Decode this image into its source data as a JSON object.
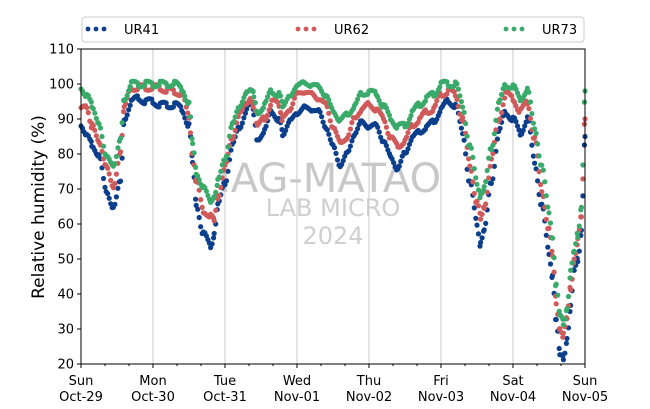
{
  "watermark": {
    "line1": "IAG-MATAO",
    "line2": "LAB MICRO",
    "line3": "2024"
  },
  "colors": {
    "UR41": "#0b3f8c",
    "UR62": "#d05a5a",
    "UR73": "#3aaa6a",
    "grid": "#c8c8c8"
  },
  "chart_data": {
    "type": "scatter",
    "ylabel": "Relative humidity (%)",
    "ylim": [
      20,
      110
    ],
    "yticks": [
      20,
      30,
      40,
      50,
      60,
      70,
      80,
      90,
      100,
      110
    ],
    "xlim": [
      0,
      7
    ],
    "xticks": [
      {
        "x": 0,
        "day": "Sun",
        "date": "Oct-29"
      },
      {
        "x": 1,
        "day": "Mon",
        "date": "Oct-30"
      },
      {
        "x": 2,
        "day": "Tue",
        "date": "Oct-31"
      },
      {
        "x": 3,
        "day": "Wed",
        "date": "Nov-01"
      },
      {
        "x": 4,
        "day": "Thu",
        "date": "Nov-02"
      },
      {
        "x": 5,
        "day": "Fri",
        "date": "Nov-03"
      },
      {
        "x": 6,
        "day": "Sat",
        "date": "Nov-04"
      },
      {
        "x": 7,
        "day": "Sun",
        "date": "Nov-05"
      }
    ],
    "grid": "vertical",
    "legend_placement": "top",
    "series": [
      {
        "name": "UR41",
        "color": "#0b3f8c",
        "points": [
          [
            0,
            88
          ],
          [
            0.08,
            86
          ],
          [
            0.15,
            83
          ],
          [
            0.25,
            79
          ],
          [
            0.35,
            70
          ],
          [
            0.45,
            64
          ],
          [
            0.55,
            73
          ],
          [
            0.6,
            90
          ],
          [
            0.7,
            95
          ],
          [
            0.8,
            96
          ],
          [
            0.9,
            95
          ],
          [
            1.0,
            95
          ],
          [
            1.1,
            94
          ],
          [
            1.2,
            94
          ],
          [
            1.3,
            94
          ],
          [
            1.4,
            93
          ],
          [
            1.5,
            88
          ],
          [
            1.55,
            78
          ],
          [
            1.6,
            66
          ],
          [
            1.7,
            57
          ],
          [
            1.8,
            54
          ],
          [
            1.85,
            57
          ],
          [
            1.9,
            65
          ],
          [
            2.0,
            72
          ],
          [
            2.1,
            82
          ],
          [
            2.2,
            88
          ],
          [
            2.3,
            92
          ],
          [
            2.35,
            95
          ],
          [
            2.4,
            92
          ],
          [
            2.45,
            84
          ],
          [
            2.55,
            87
          ],
          [
            2.65,
            92
          ],
          [
            2.75,
            90
          ],
          [
            2.8,
            86
          ],
          [
            2.9,
            89
          ],
          [
            3.0,
            92
          ],
          [
            3.1,
            93
          ],
          [
            3.2,
            93
          ],
          [
            3.3,
            92
          ],
          [
            3.4,
            88
          ],
          [
            3.5,
            82
          ],
          [
            3.6,
            77
          ],
          [
            3.7,
            80
          ],
          [
            3.8,
            86
          ],
          [
            3.9,
            89
          ],
          [
            4.0,
            88
          ],
          [
            4.1,
            88
          ],
          [
            4.2,
            84
          ],
          [
            4.3,
            79
          ],
          [
            4.4,
            76
          ],
          [
            4.5,
            80
          ],
          [
            4.6,
            85
          ],
          [
            4.7,
            86
          ],
          [
            4.8,
            88
          ],
          [
            4.9,
            89
          ],
          [
            5.0,
            93
          ],
          [
            5.1,
            95
          ],
          [
            5.2,
            94
          ],
          [
            5.3,
            86
          ],
          [
            5.4,
            72
          ],
          [
            5.5,
            60
          ],
          [
            5.55,
            54
          ],
          [
            5.6,
            58
          ],
          [
            5.7,
            72
          ],
          [
            5.8,
            86
          ],
          [
            5.9,
            92
          ],
          [
            6.0,
            90
          ],
          [
            6.1,
            86
          ],
          [
            6.2,
            90
          ],
          [
            6.3,
            78
          ],
          [
            6.4,
            65
          ],
          [
            6.5,
            52
          ],
          [
            6.55,
            45
          ],
          [
            6.6,
            32
          ],
          [
            6.65,
            23
          ],
          [
            6.7,
            22
          ],
          [
            6.75,
            27
          ],
          [
            6.8,
            36
          ],
          [
            6.85,
            47
          ],
          [
            6.9,
            50
          ],
          [
            6.95,
            58
          ],
          [
            7.0,
            85
          ]
        ]
      },
      {
        "name": "UR62",
        "color": "#d05a5a",
        "points": [
          [
            0,
            93
          ],
          [
            0.08,
            93
          ],
          [
            0.15,
            88
          ],
          [
            0.25,
            84
          ],
          [
            0.35,
            76
          ],
          [
            0.45,
            71
          ],
          [
            0.55,
            80
          ],
          [
            0.6,
            93
          ],
          [
            0.7,
            99
          ],
          [
            0.8,
            99
          ],
          [
            0.9,
            99
          ],
          [
            1.0,
            99
          ],
          [
            1.1,
            99
          ],
          [
            1.2,
            98
          ],
          [
            1.3,
            98
          ],
          [
            1.4,
            97
          ],
          [
            1.5,
            91
          ],
          [
            1.55,
            80
          ],
          [
            1.6,
            72
          ],
          [
            1.7,
            64
          ],
          [
            1.8,
            62
          ],
          [
            1.85,
            61
          ],
          [
            1.9,
            68
          ],
          [
            2.0,
            76
          ],
          [
            2.1,
            85
          ],
          [
            2.2,
            91
          ],
          [
            2.3,
            95
          ],
          [
            2.35,
            96
          ],
          [
            2.4,
            94
          ],
          [
            2.45,
            88
          ],
          [
            2.55,
            90
          ],
          [
            2.65,
            95
          ],
          [
            2.75,
            94
          ],
          [
            2.8,
            90
          ],
          [
            2.9,
            93
          ],
          [
            3.0,
            97
          ],
          [
            3.1,
            98
          ],
          [
            3.2,
            97
          ],
          [
            3.3,
            96
          ],
          [
            3.4,
            94
          ],
          [
            3.5,
            88
          ],
          [
            3.6,
            83
          ],
          [
            3.7,
            85
          ],
          [
            3.8,
            90
          ],
          [
            3.9,
            93
          ],
          [
            4.0,
            94
          ],
          [
            4.1,
            93
          ],
          [
            4.2,
            90
          ],
          [
            4.3,
            85
          ],
          [
            4.4,
            82
          ],
          [
            4.5,
            84
          ],
          [
            4.6,
            88
          ],
          [
            4.7,
            90
          ],
          [
            4.8,
            92
          ],
          [
            4.9,
            93
          ],
          [
            5.0,
            97
          ],
          [
            5.1,
            98
          ],
          [
            5.2,
            97
          ],
          [
            5.3,
            90
          ],
          [
            5.4,
            77
          ],
          [
            5.5,
            66
          ],
          [
            5.55,
            62
          ],
          [
            5.6,
            65
          ],
          [
            5.7,
            78
          ],
          [
            5.8,
            90
          ],
          [
            5.9,
            97
          ],
          [
            6.0,
            96
          ],
          [
            6.1,
            92
          ],
          [
            6.2,
            95
          ],
          [
            6.3,
            84
          ],
          [
            6.4,
            70
          ],
          [
            6.5,
            58
          ],
          [
            6.55,
            51
          ],
          [
            6.6,
            38
          ],
          [
            6.65,
            30
          ],
          [
            6.7,
            28
          ],
          [
            6.75,
            33
          ],
          [
            6.8,
            42
          ],
          [
            6.85,
            50
          ],
          [
            6.9,
            55
          ],
          [
            6.95,
            62
          ],
          [
            7.0,
            90
          ]
        ]
      },
      {
        "name": "UR73",
        "color": "#3aaa6a",
        "points": [
          [
            0,
            99
          ],
          [
            0.08,
            97
          ],
          [
            0.15,
            94
          ],
          [
            0.25,
            88
          ],
          [
            0.35,
            80
          ],
          [
            0.45,
            76
          ],
          [
            0.55,
            85
          ],
          [
            0.6,
            96
          ],
          [
            0.7,
            100
          ],
          [
            0.8,
            100
          ],
          [
            0.9,
            100
          ],
          [
            1.0,
            100
          ],
          [
            1.1,
            100
          ],
          [
            1.2,
            100
          ],
          [
            1.3,
            100
          ],
          [
            1.4,
            99
          ],
          [
            1.5,
            94
          ],
          [
            1.55,
            83
          ],
          [
            1.6,
            75
          ],
          [
            1.7,
            70
          ],
          [
            1.8,
            67
          ],
          [
            1.85,
            68
          ],
          [
            1.9,
            72
          ],
          [
            2.0,
            79
          ],
          [
            2.1,
            88
          ],
          [
            2.2,
            94
          ],
          [
            2.3,
            97
          ],
          [
            2.35,
            98
          ],
          [
            2.4,
            97
          ],
          [
            2.45,
            92
          ],
          [
            2.55,
            94
          ],
          [
            2.65,
            98
          ],
          [
            2.75,
            97
          ],
          [
            2.8,
            94
          ],
          [
            2.9,
            96
          ],
          [
            3.0,
            100
          ],
          [
            3.1,
            100
          ],
          [
            3.2,
            100
          ],
          [
            3.3,
            99
          ],
          [
            3.4,
            97
          ],
          [
            3.5,
            92
          ],
          [
            3.6,
            90
          ],
          [
            3.7,
            91
          ],
          [
            3.8,
            94
          ],
          [
            3.9,
            97
          ],
          [
            4.0,
            98
          ],
          [
            4.1,
            97
          ],
          [
            4.2,
            94
          ],
          [
            4.3,
            90
          ],
          [
            4.4,
            88
          ],
          [
            4.5,
            88
          ],
          [
            4.6,
            92
          ],
          [
            4.7,
            94
          ],
          [
            4.8,
            96
          ],
          [
            4.9,
            97
          ],
          [
            5.0,
            100
          ],
          [
            5.1,
            100
          ],
          [
            5.2,
            100
          ],
          [
            5.3,
            94
          ],
          [
            5.4,
            82
          ],
          [
            5.5,
            72
          ],
          [
            5.55,
            68
          ],
          [
            5.6,
            70
          ],
          [
            5.7,
            82
          ],
          [
            5.8,
            94
          ],
          [
            5.9,
            100
          ],
          [
            6.0,
            99
          ],
          [
            6.1,
            96
          ],
          [
            6.2,
            98
          ],
          [
            6.3,
            88
          ],
          [
            6.4,
            76
          ],
          [
            6.5,
            64
          ],
          [
            6.55,
            56
          ],
          [
            6.6,
            42
          ],
          [
            6.65,
            34
          ],
          [
            6.7,
            32
          ],
          [
            6.75,
            36
          ],
          [
            6.8,
            46
          ],
          [
            6.85,
            52
          ],
          [
            6.9,
            57
          ],
          [
            6.95,
            65
          ],
          [
            7.0,
            98
          ]
        ]
      }
    ]
  }
}
